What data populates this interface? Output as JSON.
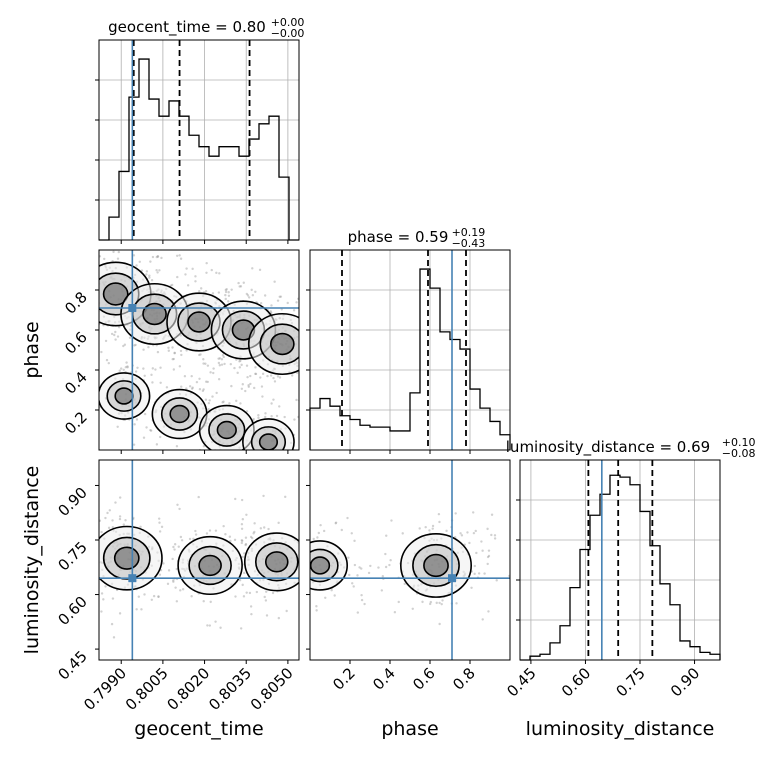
{
  "chart_data": {
    "type": "corner",
    "parameters": [
      "geocent_time",
      "phase",
      "luminosity_distance"
    ],
    "truths": {
      "geocent_time": 0.7994,
      "phase": 0.71,
      "luminosity_distance": 0.645
    },
    "truth_color": "#4682b4",
    "grid": true,
    "titles": [
      {
        "param": "geocent_time",
        "text": "geocent_time = 0.80",
        "plus": "+0.00",
        "minus": "−0.00"
      },
      {
        "param": "phase",
        "text": "phase = 0.59",
        "plus": "+0.19",
        "minus": "−0.43"
      },
      {
        "param": "luminosity_distance",
        "text": "luminosity_distance = 0.69",
        "plus": "+0.10",
        "minus": "−0.08"
      }
    ],
    "axes": {
      "geocent_time": {
        "label": "geocent_time",
        "range": [
          0.7982,
          0.8054
        ],
        "ticks": [
          0.799,
          0.8005,
          0.802,
          0.8035,
          0.805
        ],
        "tick_labels": [
          "0.7990",
          "0.8005",
          "0.8020",
          "0.8035",
          "0.8050"
        ]
      },
      "phase": {
        "label": "phase",
        "range": [
          0.0,
          1.0
        ],
        "ticks": [
          0.2,
          0.4,
          0.6,
          0.8
        ],
        "tick_labels": [
          "0.2",
          "0.4",
          "0.6",
          "0.8"
        ]
      },
      "luminosity_distance": {
        "label": "luminosity_distance",
        "range": [
          0.42,
          0.97
        ],
        "ticks": [
          0.45,
          0.6,
          0.75,
          0.9
        ],
        "tick_labels": [
          "0.45",
          "0.60",
          "0.75",
          "0.90"
        ]
      }
    },
    "marginals": {
      "geocent_time": {
        "bin_edges": [
          0.7982,
          0.79856,
          0.79892,
          0.79928,
          0.79964,
          0.8,
          0.80036,
          0.80072,
          0.80108,
          0.80144,
          0.8018,
          0.80216,
          0.80252,
          0.80288,
          0.80324,
          0.8036,
          0.80396,
          0.80432,
          0.80468,
          0.80504,
          0.8054
        ],
        "counts": [
          0.0,
          0.12,
          0.36,
          0.75,
          0.95,
          0.74,
          0.65,
          0.73,
          0.65,
          0.55,
          0.49,
          0.44,
          0.49,
          0.49,
          0.44,
          0.53,
          0.61,
          0.65,
          0.33,
          0.0
        ],
        "quantiles": [
          0.79945,
          0.8011,
          0.80362
        ]
      },
      "phase": {
        "bin_edges": [
          0.0,
          0.05,
          0.1,
          0.15,
          0.2,
          0.25,
          0.3,
          0.35,
          0.4,
          0.45,
          0.5,
          0.55,
          0.6,
          0.65,
          0.7,
          0.75,
          0.8,
          0.85,
          0.9,
          0.95,
          1.0
        ],
        "counts": [
          0.22,
          0.27,
          0.23,
          0.18,
          0.16,
          0.13,
          0.12,
          0.12,
          0.1,
          0.1,
          0.3,
          0.95,
          0.85,
          0.62,
          0.58,
          0.53,
          0.32,
          0.22,
          0.15,
          0.08
        ],
        "quantiles": [
          0.16,
          0.59,
          0.78
        ]
      },
      "luminosity_distance": {
        "bin_edges": [
          0.42,
          0.4475,
          0.475,
          0.5025,
          0.53,
          0.5575,
          0.585,
          0.6125,
          0.64,
          0.6675,
          0.695,
          0.7225,
          0.75,
          0.7775,
          0.805,
          0.8325,
          0.86,
          0.8875,
          0.915,
          0.9425,
          0.97
        ],
        "counts": [
          0.0,
          0.02,
          0.03,
          0.09,
          0.18,
          0.38,
          0.58,
          0.76,
          0.87,
          0.97,
          0.96,
          0.92,
          0.78,
          0.6,
          0.4,
          0.29,
          0.1,
          0.07,
          0.04,
          0.03
        ],
        "quantiles": [
          0.608,
          0.69,
          0.784
        ]
      }
    },
    "samples_2d": {
      "phase_vs_geocent_time": {
        "description_free": true,
        "centers": [
          {
            "x": 0.7988,
            "y": 0.78,
            "weight": 1.0
          },
          {
            "x": 0.8002,
            "y": 0.68,
            "weight": 0.9
          },
          {
            "x": 0.8018,
            "y": 0.64,
            "weight": 0.8
          },
          {
            "x": 0.8034,
            "y": 0.6,
            "weight": 0.8
          },
          {
            "x": 0.8048,
            "y": 0.53,
            "weight": 0.9
          },
          {
            "x": 0.7991,
            "y": 0.27,
            "weight": 0.4
          },
          {
            "x": 0.8011,
            "y": 0.18,
            "weight": 0.5
          },
          {
            "x": 0.8028,
            "y": 0.1,
            "weight": 0.5
          },
          {
            "x": 0.8043,
            "y": 0.04,
            "weight": 0.4
          }
        ]
      },
      "luminosity_distance_vs_geocent_time": {
        "centers": [
          {
            "x": 0.7992,
            "y": 0.7,
            "weight": 1.0
          },
          {
            "x": 0.8022,
            "y": 0.68,
            "weight": 0.8
          },
          {
            "x": 0.8046,
            "y": 0.69,
            "weight": 0.8
          }
        ]
      },
      "luminosity_distance_vs_phase": {
        "centers": [
          {
            "x": 0.63,
            "y": 0.68,
            "weight": 1.0
          },
          {
            "x": 0.05,
            "y": 0.68,
            "weight": 0.5
          }
        ]
      }
    }
  }
}
